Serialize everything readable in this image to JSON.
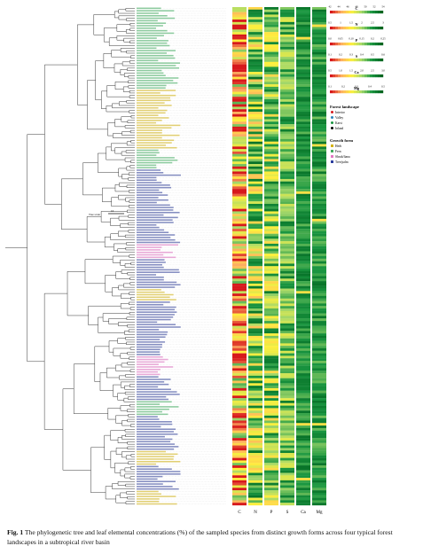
{
  "figure": {
    "scale_bar_label": "Tree scale",
    "scale_bar_value": "10",
    "columns": [
      "C",
      "N",
      "P",
      "S",
      "Ca",
      "Mg"
    ]
  },
  "legends": {
    "element_bars": [
      {
        "name": "C",
        "ticks": [
          "42",
          "44",
          "46",
          "48",
          "50",
          "52",
          "54"
        ]
      },
      {
        "name": "N",
        "ticks": [
          "0.5",
          "1",
          "1.5",
          "2",
          "2.5",
          "3"
        ]
      },
      {
        "name": "P",
        "ticks": [
          "0.0",
          "0.05",
          "0.10",
          "0.15",
          "0.2",
          "0.25"
        ]
      },
      {
        "name": "S",
        "ticks": [
          "0.1",
          "0.2",
          "0.3",
          "0.4",
          "0.5",
          "0.6"
        ]
      },
      {
        "name": "Ca",
        "ticks": [
          "0.5",
          "1.0",
          "1.5",
          "2.0",
          "2.5",
          "3.0"
        ]
      },
      {
        "name": "Mg",
        "ticks": [
          "0.1",
          "0.2",
          "0.3",
          "0.4",
          "0.5"
        ]
      }
    ],
    "landscape": {
      "title": "Forest landscape",
      "items": [
        {
          "label": "Interior",
          "color": "#d7191c"
        },
        {
          "label": "Valley",
          "color": "#2b83ba"
        },
        {
          "label": "Karst",
          "color": "#1a9641"
        },
        {
          "label": "Inland",
          "color": "#000000"
        }
      ]
    },
    "growth": {
      "title": "Growth form",
      "items": [
        {
          "label": "Herb",
          "color": "#d4b106"
        },
        {
          "label": "Fern",
          "color": "#41ab5d"
        },
        {
          "label": "Shrub/liana",
          "color": "#e377c2"
        },
        {
          "label": "Tree/palm",
          "color": "#2c3e9e"
        }
      ]
    }
  },
  "caption": {
    "label": "Fig. 1",
    "text": "The phylogenetic tree and leaf elemental concentrations (%) of the sampled species from distinct growth forms across four typical forest landscapes in a subtropical river basin"
  },
  "colors": {
    "herb_label": "#c9a800",
    "fern_label": "#2e9e4f",
    "shrub_label": "#d45fb5",
    "tree_label": "#1f2f8c"
  }
}
